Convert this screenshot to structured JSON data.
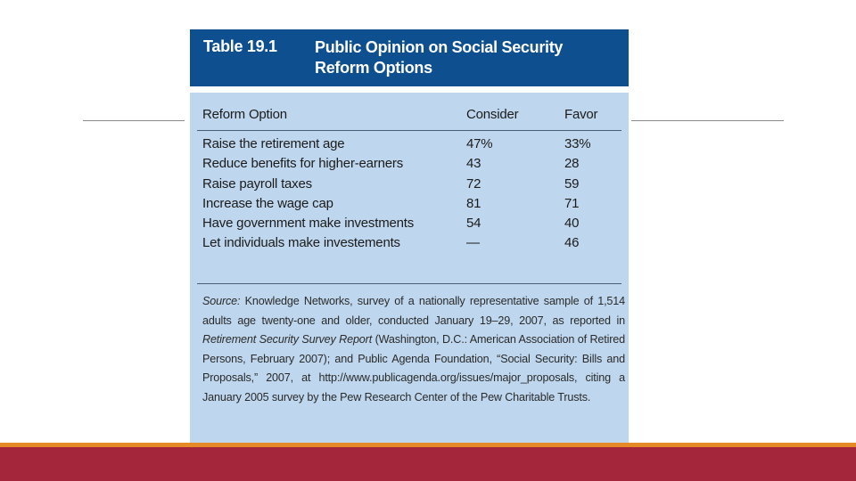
{
  "table": {
    "number": "Table 19.1",
    "title": "Public Opinion on Social Security Reform Options",
    "headers": {
      "option": "Reform Option",
      "consider": "Consider",
      "favor": "Favor"
    },
    "rows": [
      {
        "option": "Raise the retirement age",
        "consider": "47%",
        "favor": "33%"
      },
      {
        "option": "Reduce benefits for higher-earners",
        "consider": "43",
        "favor": "28"
      },
      {
        "option": "Raise payroll taxes",
        "consider": "72",
        "favor": "59"
      },
      {
        "option": "Increase the wage cap",
        "consider": "81",
        "favor": "71"
      },
      {
        "option": "Have government make investments",
        "consider": "54",
        "favor": "40"
      },
      {
        "option": "Let individuals make investements",
        "consider": "—",
        "favor": "46"
      }
    ],
    "source": {
      "label": "Source:",
      "part1": "Knowledge Networks, survey of a nationally representative sample of 1,514 adults age twenty-one and older, conducted January 19–29, 2007, as reported in",
      "report_title": "Retirement Security Survey Report",
      "part2": "(Washington, D.C.: American Association of Retired Persons, February 2007); and Public Agenda Foundation, “Social Security: Bills and Proposals,” 2007, at http://www.publicagenda.org/issues/major_proposals, citing a January 2005 survey by the Pew Research Center of the Pew Charitable Trusts."
    }
  },
  "colors": {
    "title_bar": "#0d4f8f",
    "body_bg": "#bfd7ee",
    "accent_orange": "#e58a26",
    "accent_red": "#a3263a"
  }
}
